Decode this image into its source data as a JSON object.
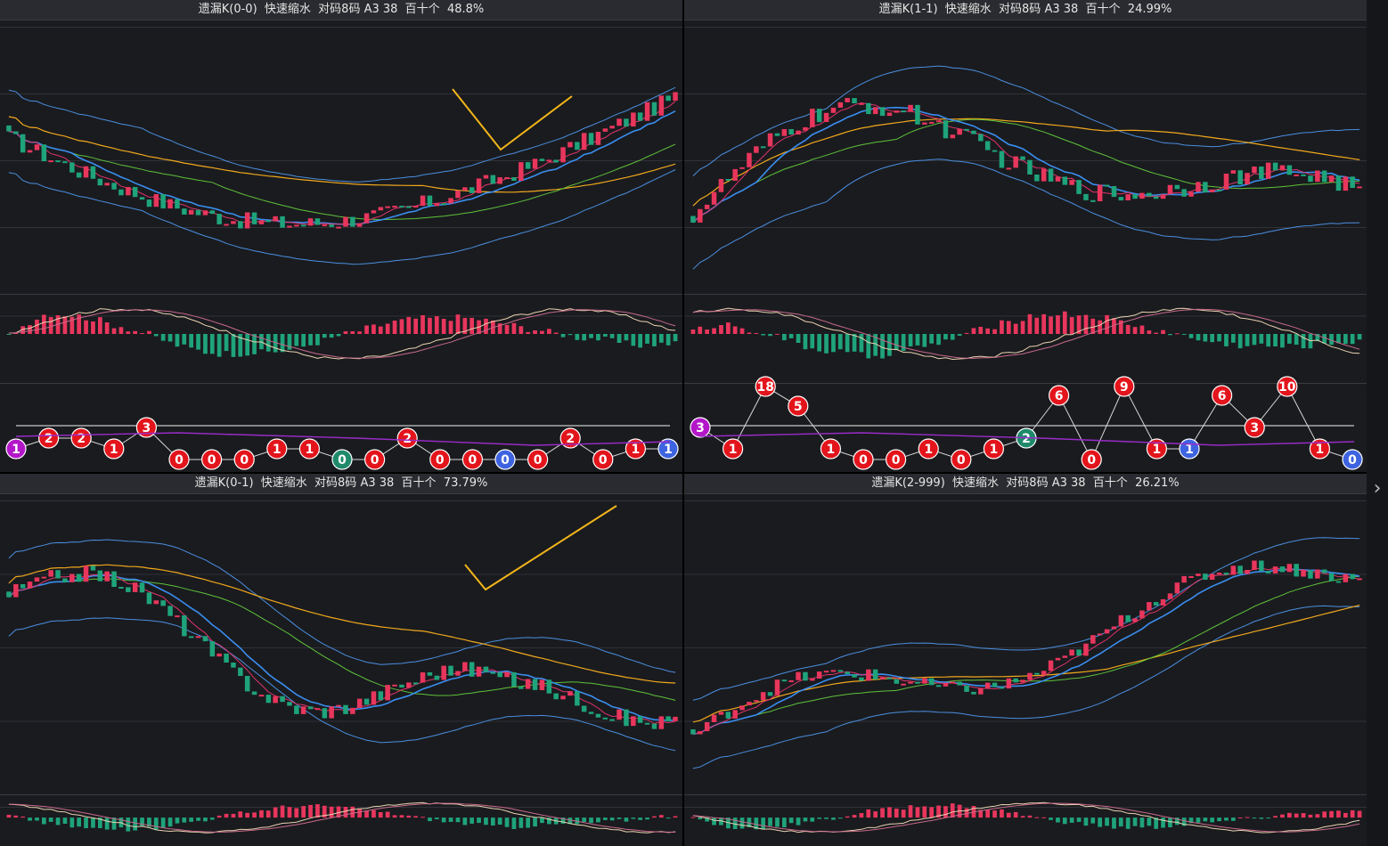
{
  "panels": [
    {
      "title": "遗漏K(0-0)  快速缩水  对码8码 A3 38  百十个  48.8%",
      "trend": "down-up",
      "checkmark": "v",
      "balls": [
        {
          "value": "1",
          "color": "#b316c9"
        },
        {
          "value": "2",
          "color": "#e3141b"
        },
        {
          "value": "2",
          "color": "#e3141b"
        },
        {
          "value": "1",
          "color": "#e3141b"
        },
        {
          "value": "3",
          "color": "#e3141b"
        },
        {
          "value": "0",
          "color": "#e3141b"
        },
        {
          "value": "0",
          "color": "#e3141b"
        },
        {
          "value": "0",
          "color": "#e3141b"
        },
        {
          "value": "1",
          "color": "#e3141b"
        },
        {
          "value": "1",
          "color": "#e3141b"
        },
        {
          "value": "0",
          "color": "#1f8a6a"
        },
        {
          "value": "0",
          "color": "#e3141b"
        },
        {
          "value": "2",
          "color": "#e3141b"
        },
        {
          "value": "0",
          "color": "#e3141b"
        },
        {
          "value": "0",
          "color": "#e3141b"
        },
        {
          "value": "0",
          "color": "#3d63e0"
        },
        {
          "value": "0",
          "color": "#e3141b"
        },
        {
          "value": "2",
          "color": "#e3141b"
        },
        {
          "value": "0",
          "color": "#e3141b"
        },
        {
          "value": "1",
          "color": "#e3141b"
        },
        {
          "value": "1",
          "color": "#3d63e0"
        }
      ]
    },
    {
      "title": "遗漏K(1-1)  快速缩水  对码8码 A3 38  百十个  24.99%",
      "trend": "up-flat",
      "checkmark": "",
      "balls": [
        {
          "value": "3",
          "color": "#b316c9"
        },
        {
          "value": "1",
          "color": "#e3141b"
        },
        {
          "value": "18",
          "color": "#e3141b"
        },
        {
          "value": "5",
          "color": "#e3141b"
        },
        {
          "value": "1",
          "color": "#e3141b"
        },
        {
          "value": "0",
          "color": "#e3141b"
        },
        {
          "value": "0",
          "color": "#e3141b"
        },
        {
          "value": "1",
          "color": "#e3141b"
        },
        {
          "value": "0",
          "color": "#e3141b"
        },
        {
          "value": "1",
          "color": "#e3141b"
        },
        {
          "value": "2",
          "color": "#1f8a6a"
        },
        {
          "value": "6",
          "color": "#e3141b"
        },
        {
          "value": "0",
          "color": "#e3141b"
        },
        {
          "value": "9",
          "color": "#e3141b"
        },
        {
          "value": "1",
          "color": "#e3141b"
        },
        {
          "value": "1",
          "color": "#3d63e0"
        },
        {
          "value": "6",
          "color": "#e3141b"
        },
        {
          "value": "3",
          "color": "#e3141b"
        },
        {
          "value": "10",
          "color": "#e3141b"
        },
        {
          "value": "1",
          "color": "#e3141b"
        },
        {
          "value": "0",
          "color": "#3d63e0"
        }
      ]
    },
    {
      "title": "遗漏K(0-1)  快速缩水  对码8码 A3 38  百十个  73.79%",
      "trend": "down-bounce",
      "checkmark": "check",
      "balls": []
    },
    {
      "title": "遗漏K(2-999)  快速缩水  对码8码 A3 38  百十个  26.21%",
      "trend": "rise",
      "checkmark": "",
      "balls": []
    }
  ],
  "colors": {
    "up": "#e8365c",
    "down": "#1fa37a",
    "ma_fast": "#e0336a",
    "ma_mid": "#3a8ef0",
    "ma_slow": "#5ec23a",
    "ma_long": "#f0a81c",
    "band": "#4a8fe0",
    "macd_dif": "#e8d2b0",
    "macd_dea": "#c86a8a",
    "annotation": "#f2b51a"
  },
  "chart_data": {
    "type": "candlestick",
    "note_icon": "chevron-right-icon"
  }
}
